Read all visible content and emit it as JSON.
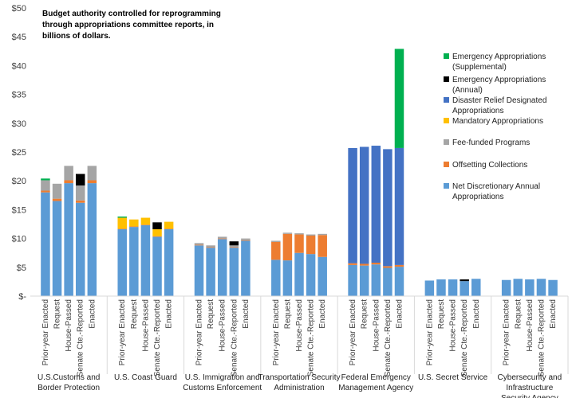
{
  "chart_data": {
    "type": "bar",
    "stacked": true,
    "title_lines": [
      "Budget authority controlled for reprogramming",
      "through appropriations committee reports, in",
      "billions of dollars."
    ],
    "ylim": [
      0,
      50
    ],
    "y_ticks": [
      "$-",
      "$5",
      "$10",
      "$15",
      "$20",
      "$25",
      "$30",
      "$35",
      "$40",
      "$45",
      "$50"
    ],
    "grid": false,
    "legend_position": "right",
    "series_keys": [
      "net",
      "offset",
      "fee",
      "mand",
      "dr",
      "ann",
      "supp"
    ],
    "series": [
      {
        "key": "net",
        "name_lines": [
          "Net Discretionary Annual",
          "Appropriations"
        ],
        "color": "#5b9bd5"
      },
      {
        "key": "offset",
        "name_lines": [
          "Offsetting Collections"
        ],
        "color": "#ed7d31"
      },
      {
        "key": "fee",
        "name_lines": [
          "Fee-funded Programs"
        ],
        "color": "#a5a5a5"
      },
      {
        "key": "mand",
        "name_lines": [
          "Mandatory Appropriations"
        ],
        "color": "#ffc000"
      },
      {
        "key": "dr",
        "name_lines": [
          "Disaster Relief Designated",
          "Appropriations"
        ],
        "color": "#4472c4"
      },
      {
        "key": "ann",
        "name_lines": [
          "Emergency Appropriations",
          "(Annual)"
        ],
        "color": "#000000"
      },
      {
        "key": "supp",
        "name_lines": [
          "Emergency Appropriations",
          "(Supplemental)"
        ],
        "color": "#00b050"
      }
    ],
    "legend_order": [
      "supp",
      "ann",
      "dr",
      "mand",
      "fee",
      "offset",
      "net"
    ],
    "bar_labels": [
      "Prior-year Enacted",
      "Request",
      "House-Passed",
      "Senate Cte.-Reported",
      "Enacted"
    ],
    "groups": [
      {
        "label_lines": [
          "U.S.Customs and",
          "Border Protection"
        ],
        "bars": [
          {
            "net": 18.0,
            "offset": 0.3,
            "fee": 1.8,
            "mand": 0,
            "dr": 0,
            "ann": 0,
            "supp": 0.3
          },
          {
            "net": 16.5,
            "offset": 0.4,
            "fee": 2.6,
            "mand": 0,
            "dr": 0,
            "ann": 0,
            "supp": 0
          },
          {
            "net": 19.6,
            "offset": 0.5,
            "fee": 2.5,
            "mand": 0,
            "dr": 0,
            "ann": 0,
            "supp": 0
          },
          {
            "net": 16.2,
            "offset": 0.4,
            "fee": 2.6,
            "mand": 0,
            "dr": 0,
            "ann": 2.0,
            "supp": 0
          },
          {
            "net": 19.6,
            "offset": 0.5,
            "fee": 2.5,
            "mand": 0,
            "dr": 0,
            "ann": 0,
            "supp": 0
          }
        ]
      },
      {
        "label_lines": [
          "U.S. Coast Guard"
        ],
        "bars": [
          {
            "net": 11.6,
            "offset": 0.1,
            "fee": 0,
            "mand": 1.9,
            "dr": 0,
            "ann": 0,
            "supp": 0.2
          },
          {
            "net": 12.0,
            "offset": 0.1,
            "fee": 0,
            "mand": 1.2,
            "dr": 0,
            "ann": 0,
            "supp": 0
          },
          {
            "net": 12.3,
            "offset": 0.1,
            "fee": 0,
            "mand": 1.2,
            "dr": 0,
            "ann": 0,
            "supp": 0
          },
          {
            "net": 10.3,
            "offset": 0.1,
            "fee": 0,
            "mand": 1.2,
            "dr": 0,
            "ann": 1.2,
            "supp": 0
          },
          {
            "net": 11.6,
            "offset": 0.1,
            "fee": 0,
            "mand": 1.2,
            "dr": 0,
            "ann": 0,
            "supp": 0
          }
        ]
      },
      {
        "label_lines": [
          "U.S. Immigration and",
          "Customs Enforcement"
        ],
        "bars": [
          {
            "net": 8.8,
            "offset": 0.1,
            "fee": 0.3,
            "mand": 0,
            "dr": 0,
            "ann": 0,
            "supp": 0
          },
          {
            "net": 8.4,
            "offset": 0.1,
            "fee": 0.3,
            "mand": 0,
            "dr": 0,
            "ann": 0,
            "supp": 0
          },
          {
            "net": 9.9,
            "offset": 0.1,
            "fee": 0.3,
            "mand": 0,
            "dr": 0,
            "ann": 0,
            "supp": 0
          },
          {
            "net": 8.4,
            "offset": 0.1,
            "fee": 0.3,
            "mand": 0,
            "dr": 0,
            "ann": 0.7,
            "supp": 0
          },
          {
            "net": 9.6,
            "offset": 0.1,
            "fee": 0.3,
            "mand": 0,
            "dr": 0,
            "ann": 0,
            "supp": 0
          }
        ]
      },
      {
        "label_lines": [
          "Transportation Security",
          "Administration"
        ],
        "bars": [
          {
            "net": 6.3,
            "offset": 3.1,
            "fee": 0.2,
            "mand": 0,
            "dr": 0,
            "ann": 0,
            "supp": 0
          },
          {
            "net": 6.2,
            "offset": 4.6,
            "fee": 0.2,
            "mand": 0,
            "dr": 0,
            "ann": 0,
            "supp": 0
          },
          {
            "net": 7.5,
            "offset": 3.2,
            "fee": 0.2,
            "mand": 0,
            "dr": 0,
            "ann": 0,
            "supp": 0
          },
          {
            "net": 7.3,
            "offset": 3.2,
            "fee": 0.2,
            "mand": 0,
            "dr": 0,
            "ann": 0,
            "supp": 0
          },
          {
            "net": 6.8,
            "offset": 3.8,
            "fee": 0.2,
            "mand": 0,
            "dr": 0,
            "ann": 0,
            "supp": 0
          }
        ]
      },
      {
        "label_lines": [
          "Federal Emergency",
          "Management Agency"
        ],
        "bars": [
          {
            "net": 5.4,
            "offset": 0.3,
            "fee": 0,
            "mand": 0,
            "dr": 20.0,
            "ann": 0,
            "supp": 0
          },
          {
            "net": 5.3,
            "offset": 0.3,
            "fee": 0,
            "mand": 0,
            "dr": 20.3,
            "ann": 0,
            "supp": 0
          },
          {
            "net": 5.5,
            "offset": 0.3,
            "fee": 0,
            "mand": 0,
            "dr": 20.3,
            "ann": 0,
            "supp": 0
          },
          {
            "net": 4.9,
            "offset": 0.3,
            "fee": 0,
            "mand": 0,
            "dr": 20.3,
            "ann": 0,
            "supp": 0
          },
          {
            "net": 5.1,
            "offset": 0.3,
            "fee": 0,
            "mand": 0,
            "dr": 20.3,
            "ann": 0,
            "supp": 17.2
          }
        ]
      },
      {
        "label_lines": [
          "U.S. Secret Service"
        ],
        "bars": [
          {
            "net": 2.7,
            "offset": 0,
            "fee": 0,
            "mand": 0,
            "dr": 0,
            "ann": 0,
            "supp": 0
          },
          {
            "net": 2.9,
            "offset": 0,
            "fee": 0,
            "mand": 0,
            "dr": 0,
            "ann": 0,
            "supp": 0
          },
          {
            "net": 2.9,
            "offset": 0,
            "fee": 0,
            "mand": 0,
            "dr": 0,
            "ann": 0,
            "supp": 0
          },
          {
            "net": 2.6,
            "offset": 0,
            "fee": 0,
            "mand": 0,
            "dr": 0,
            "ann": 0.3,
            "supp": 0
          },
          {
            "net": 3.0,
            "offset": 0,
            "fee": 0,
            "mand": 0,
            "dr": 0,
            "ann": 0,
            "supp": 0
          }
        ]
      },
      {
        "label_lines": [
          "Cybersecurity and",
          "Infrastructure",
          "Security Agency"
        ],
        "bars": [
          {
            "net": 2.8,
            "offset": 0,
            "fee": 0,
            "mand": 0,
            "dr": 0,
            "ann": 0,
            "supp": 0
          },
          {
            "net": 3.0,
            "offset": 0,
            "fee": 0,
            "mand": 0,
            "dr": 0,
            "ann": 0,
            "supp": 0
          },
          {
            "net": 2.9,
            "offset": 0,
            "fee": 0,
            "mand": 0,
            "dr": 0,
            "ann": 0,
            "supp": 0
          },
          {
            "net": 3.0,
            "offset": 0,
            "fee": 0,
            "mand": 0,
            "dr": 0,
            "ann": 0,
            "supp": 0
          },
          {
            "net": 2.8,
            "offset": 0,
            "fee": 0,
            "mand": 0,
            "dr": 0,
            "ann": 0,
            "supp": 0
          }
        ]
      }
    ]
  }
}
